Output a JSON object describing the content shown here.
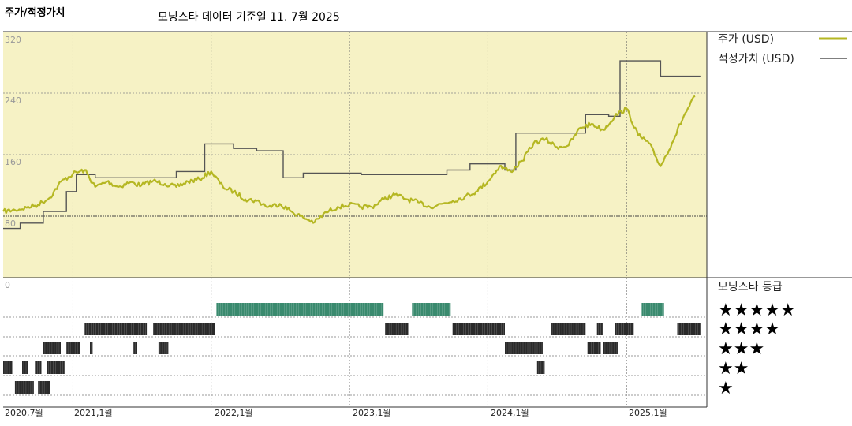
{
  "header": {
    "title": "주가/적정가치",
    "subtitle": "모닝스타 데이터 기준일 11. 7월 2025"
  },
  "colors": {
    "price": "#b5b723",
    "fair": "#555555",
    "panel_bg": "#f6f2c5",
    "rating_green": "#3a8a6e",
    "rating_black": "#2a2a2a"
  },
  "chart_data": [
    {
      "type": "line",
      "y_ticks": [
        "320",
        "240",
        "160",
        "80",
        "0"
      ],
      "ylim": [
        0,
        320
      ],
      "x_ticks": [
        "2020,7월",
        "2021,1월",
        "2022,1월",
        "2023,1월",
        "2024,1월",
        "2025,1월"
      ],
      "xlim": [
        "2020-07",
        "2025-07"
      ],
      "grid": true,
      "legend_position": "top-right",
      "series": [
        {
          "name": "주가 (USD)",
          "points": [
            [
              "2020-07-01",
              86
            ],
            [
              "2020-08-01",
              88
            ],
            [
              "2020-09-01",
              91
            ],
            [
              "2020-10-01",
              95
            ],
            [
              "2020-11-01",
              104
            ],
            [
              "2020-12-01",
              125
            ],
            [
              "2021-01-01",
              135
            ],
            [
              "2021-02-01",
              140
            ],
            [
              "2021-03-01",
              118
            ],
            [
              "2021-04-01",
              125
            ],
            [
              "2021-05-01",
              118
            ],
            [
              "2021-06-01",
              124
            ],
            [
              "2021-07-01",
              120
            ],
            [
              "2021-08-01",
              126
            ],
            [
              "2021-09-01",
              122
            ],
            [
              "2021-10-01",
              118
            ],
            [
              "2021-11-01",
              125
            ],
            [
              "2021-12-01",
              128
            ],
            [
              "2022-01-01",
              138
            ],
            [
              "2022-02-01",
              118
            ],
            [
              "2022-03-01",
              112
            ],
            [
              "2022-04-01",
              102
            ],
            [
              "2022-05-01",
              100
            ],
            [
              "2022-06-01",
              92
            ],
            [
              "2022-07-01",
              96
            ],
            [
              "2022-08-01",
              86
            ],
            [
              "2022-09-01",
              78
            ],
            [
              "2022-10-01",
              72
            ],
            [
              "2022-11-01",
              85
            ],
            [
              "2022-12-01",
              92
            ],
            [
              "2023-01-01",
              95
            ],
            [
              "2023-02-01",
              92
            ],
            [
              "2023-03-01",
              92
            ],
            [
              "2023-04-01",
              102
            ],
            [
              "2023-05-01",
              108
            ],
            [
              "2023-06-01",
              102
            ],
            [
              "2023-07-01",
              98
            ],
            [
              "2023-08-01",
              92
            ],
            [
              "2023-09-01",
              96
            ],
            [
              "2023-10-01",
              100
            ],
            [
              "2023-11-01",
              105
            ],
            [
              "2023-12-01",
              112
            ],
            [
              "2024-01-01",
              125
            ],
            [
              "2024-02-01",
              145
            ],
            [
              "2024-03-01",
              138
            ],
            [
              "2024-04-01",
              152
            ],
            [
              "2024-05-01",
              175
            ],
            [
              "2024-06-01",
              180
            ],
            [
              "2024-07-01",
              170
            ],
            [
              "2024-08-01",
              172
            ],
            [
              "2024-09-01",
              195
            ],
            [
              "2024-10-01",
              200
            ],
            [
              "2024-11-01",
              192
            ],
            [
              "2024-12-01",
              210
            ],
            [
              "2025-01-01",
              220
            ],
            [
              "2025-02-01",
              185
            ],
            [
              "2025-03-01",
              175
            ],
            [
              "2025-04-01",
              145
            ],
            [
              "2025-05-01",
              175
            ],
            [
              "2025-06-01",
              210
            ],
            [
              "2025-07-01",
              236
            ]
          ]
        },
        {
          "name": "적정가치 (USD)",
          "points": [
            [
              "2020-07-01",
              64
            ],
            [
              "2020-08-15",
              71
            ],
            [
              "2020-10-15",
              86
            ],
            [
              "2020-12-15",
              112
            ],
            [
              "2021-01-10",
              134
            ],
            [
              "2021-03-01",
              130
            ],
            [
              "2021-10-01",
              138
            ],
            [
              "2021-12-15",
              174
            ],
            [
              "2022-03-01",
              168
            ],
            [
              "2022-05-01",
              165
            ],
            [
              "2022-07-10",
              130
            ],
            [
              "2022-09-01",
              136
            ],
            [
              "2023-02-01",
              134
            ],
            [
              "2023-09-15",
              140
            ],
            [
              "2023-11-15",
              148
            ],
            [
              "2024-02-15",
              140
            ],
            [
              "2024-03-15",
              188
            ],
            [
              "2024-09-15",
              212
            ],
            [
              "2024-11-15",
              210
            ],
            [
              "2024-12-15",
              282
            ],
            [
              "2025-04-01",
              262
            ]
          ]
        }
      ]
    },
    {
      "type": "heatmap",
      "title": "모닝스타 등급",
      "levels": [
        "★★★★★",
        "★★★★",
        "★★★",
        "★★",
        "★"
      ],
      "rows": [
        {
          "level": 5,
          "ranges": [
            [
              "2022-01-15",
              "2023-04-01"
            ],
            [
              "2023-06-15",
              "2023-09-25"
            ],
            [
              "2025-02-10",
              "2025-04-10"
            ]
          ]
        },
        {
          "level": 4,
          "ranges": [
            [
              "2021-02-01",
              "2021-07-15"
            ],
            [
              "2021-08-01",
              "2022-01-10"
            ],
            [
              "2023-04-05",
              "2023-06-05"
            ],
            [
              "2023-09-30",
              "2024-02-15"
            ],
            [
              "2024-06-15",
              "2024-09-15"
            ],
            [
              "2024-10-15",
              "2024-10-30"
            ],
            [
              "2024-12-01",
              "2025-01-20"
            ],
            [
              "2025-05-15",
              "2025-07-15"
            ]
          ]
        },
        {
          "level": 3,
          "ranges": [
            [
              "2020-10-15",
              "2020-11-30"
            ],
            [
              "2020-12-15",
              "2021-01-20"
            ],
            [
              "2021-02-15",
              "2021-02-22"
            ],
            [
              "2021-06-10",
              "2021-06-20"
            ],
            [
              "2021-08-15",
              "2021-09-10"
            ],
            [
              "2024-02-15",
              "2024-05-25"
            ],
            [
              "2024-09-20",
              "2024-10-25"
            ],
            [
              "2024-11-01",
              "2024-12-10"
            ]
          ]
        },
        {
          "level": 2,
          "ranges": [
            [
              "2020-07-01",
              "2020-07-25"
            ],
            [
              "2020-08-20",
              "2020-09-05"
            ],
            [
              "2020-09-25",
              "2020-10-10"
            ],
            [
              "2020-10-25",
              "2020-12-10"
            ],
            [
              "2024-05-10",
              "2024-05-30"
            ]
          ]
        },
        {
          "level": 1,
          "ranges": [
            [
              "2020-08-01",
              "2020-09-20"
            ],
            [
              "2020-10-01",
              "2020-11-01"
            ]
          ]
        }
      ]
    }
  ]
}
